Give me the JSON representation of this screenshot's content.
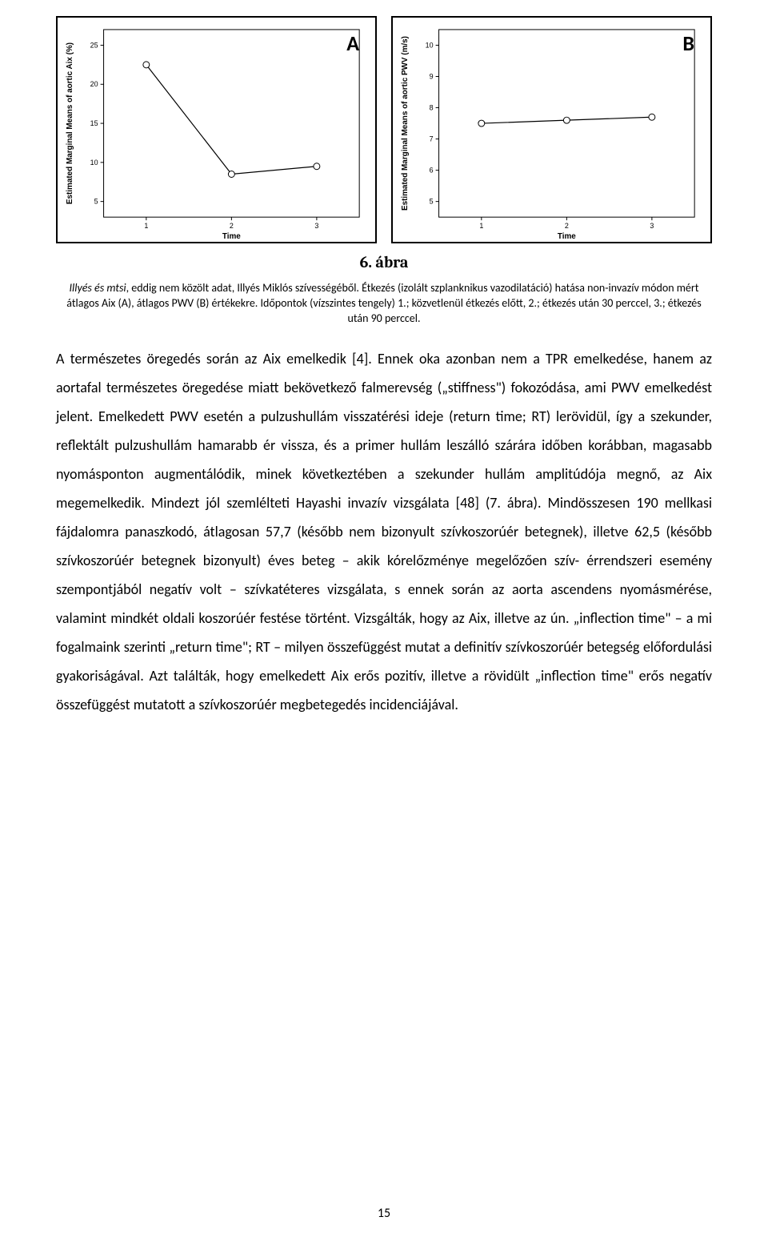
{
  "figure_title": "6. ábra",
  "caption": {
    "lead_italic": "Illyés és mtsi",
    "text_after_lead": ", eddig nem közölt adat, Illyés Miklós szívességéből. Étkezés (izolált szplanknikus vazodilatáció) hatása non-invazív módon mért átlagos Aix (A), átlagos PWV (B) értékekre. Időpontok (vízszintes tengely) 1.; közvetlenül étkezés előtt, 2.; étkezés után 30 perccel, 3.; étkezés után 90 perccel."
  },
  "body_paragraph": "A természetes öregedés során az Aix emelkedik [4]. Ennek oka azonban nem a TPR emelkedése, hanem az aortafal természetes öregedése miatt bekövetkező falmerevség („stiffness\") fokozódása, ami PWV emelkedést jelent. Emelkedett PWV esetén a pulzushullám visszatérési ideje (return time; RT) lerövidül, így a szekunder, reflektált pulzushullám hamarabb ér vissza, és a primer hullám leszálló szárára időben korábban, magasabb nyomásponton augmentálódik, minek következtében a szekunder hullám amplitúdója megnő, az Aix megemelkedik. Mindezt jól szemlélteti Hayashi invazív vizsgálata [48] (7. ábra). Mindösszesen 190 mellkasi fájdalomra panaszkodó, átlagosan 57,7 (később nem bizonyult szívkoszorúér betegnek), illetve 62,5 (később szívkoszorúér betegnek bizonyult) éves beteg – akik kórelőzménye megelőzően szív- érrendszeri esemény szempontjából negatív volt – szívkatéteres vizsgálata, s ennek során az aorta ascendens nyomásmérése, valamint mindkét oldali koszorúér festése történt. Vizsgálták, hogy az Aix, illetve az ún. „inflection time\" – a mi fogalmaink szerinti „return time\"; RT – milyen összefüggést mutat a definitív szívkoszorúér betegség előfordulási gyakoriságával. Azt találták, hogy emelkedett Aix erős pozitív, illetve a rövidült „inflection time\" erős negatív összefüggést mutatott a szívkoszorúér megbetegedés incidenciájával.",
  "page_number": "15",
  "chartA": {
    "type": "line",
    "panel_letter": "A",
    "x_label": "Time",
    "y_label": "Estimated Marginal Means of aortic Aix (%)",
    "x_ticks": [
      1,
      2,
      3
    ],
    "y_ticks": [
      5,
      10,
      15,
      20,
      25
    ],
    "ylim": [
      3,
      27
    ],
    "xlim": [
      0.5,
      3.5
    ],
    "values": [
      {
        "x": 1,
        "y": 22.5
      },
      {
        "x": 2,
        "y": 8.5
      },
      {
        "x": 3,
        "y": 9.5
      }
    ],
    "line_color": "#000000",
    "marker": "circle-open",
    "marker_size": 4,
    "line_width": 1.2,
    "border_color": "#000000",
    "background_color": "#ffffff",
    "tick_fontsize": 9,
    "label_fontsize": 10
  },
  "chartB": {
    "type": "line",
    "panel_letter": "B",
    "x_label": "Time",
    "y_label": "Estimated Marginal Means of aortic PWV (m/s)",
    "x_ticks": [
      1,
      2,
      3
    ],
    "y_ticks": [
      5,
      6,
      7,
      8,
      9,
      10
    ],
    "ylim": [
      4.5,
      10.5
    ],
    "xlim": [
      0.5,
      3.5
    ],
    "values": [
      {
        "x": 1,
        "y": 7.5
      },
      {
        "x": 2,
        "y": 7.6
      },
      {
        "x": 3,
        "y": 7.7
      }
    ],
    "line_color": "#000000",
    "marker": "circle-open",
    "marker_size": 4,
    "line_width": 1.2,
    "border_color": "#000000",
    "background_color": "#ffffff",
    "tick_fontsize": 9,
    "label_fontsize": 10
  }
}
